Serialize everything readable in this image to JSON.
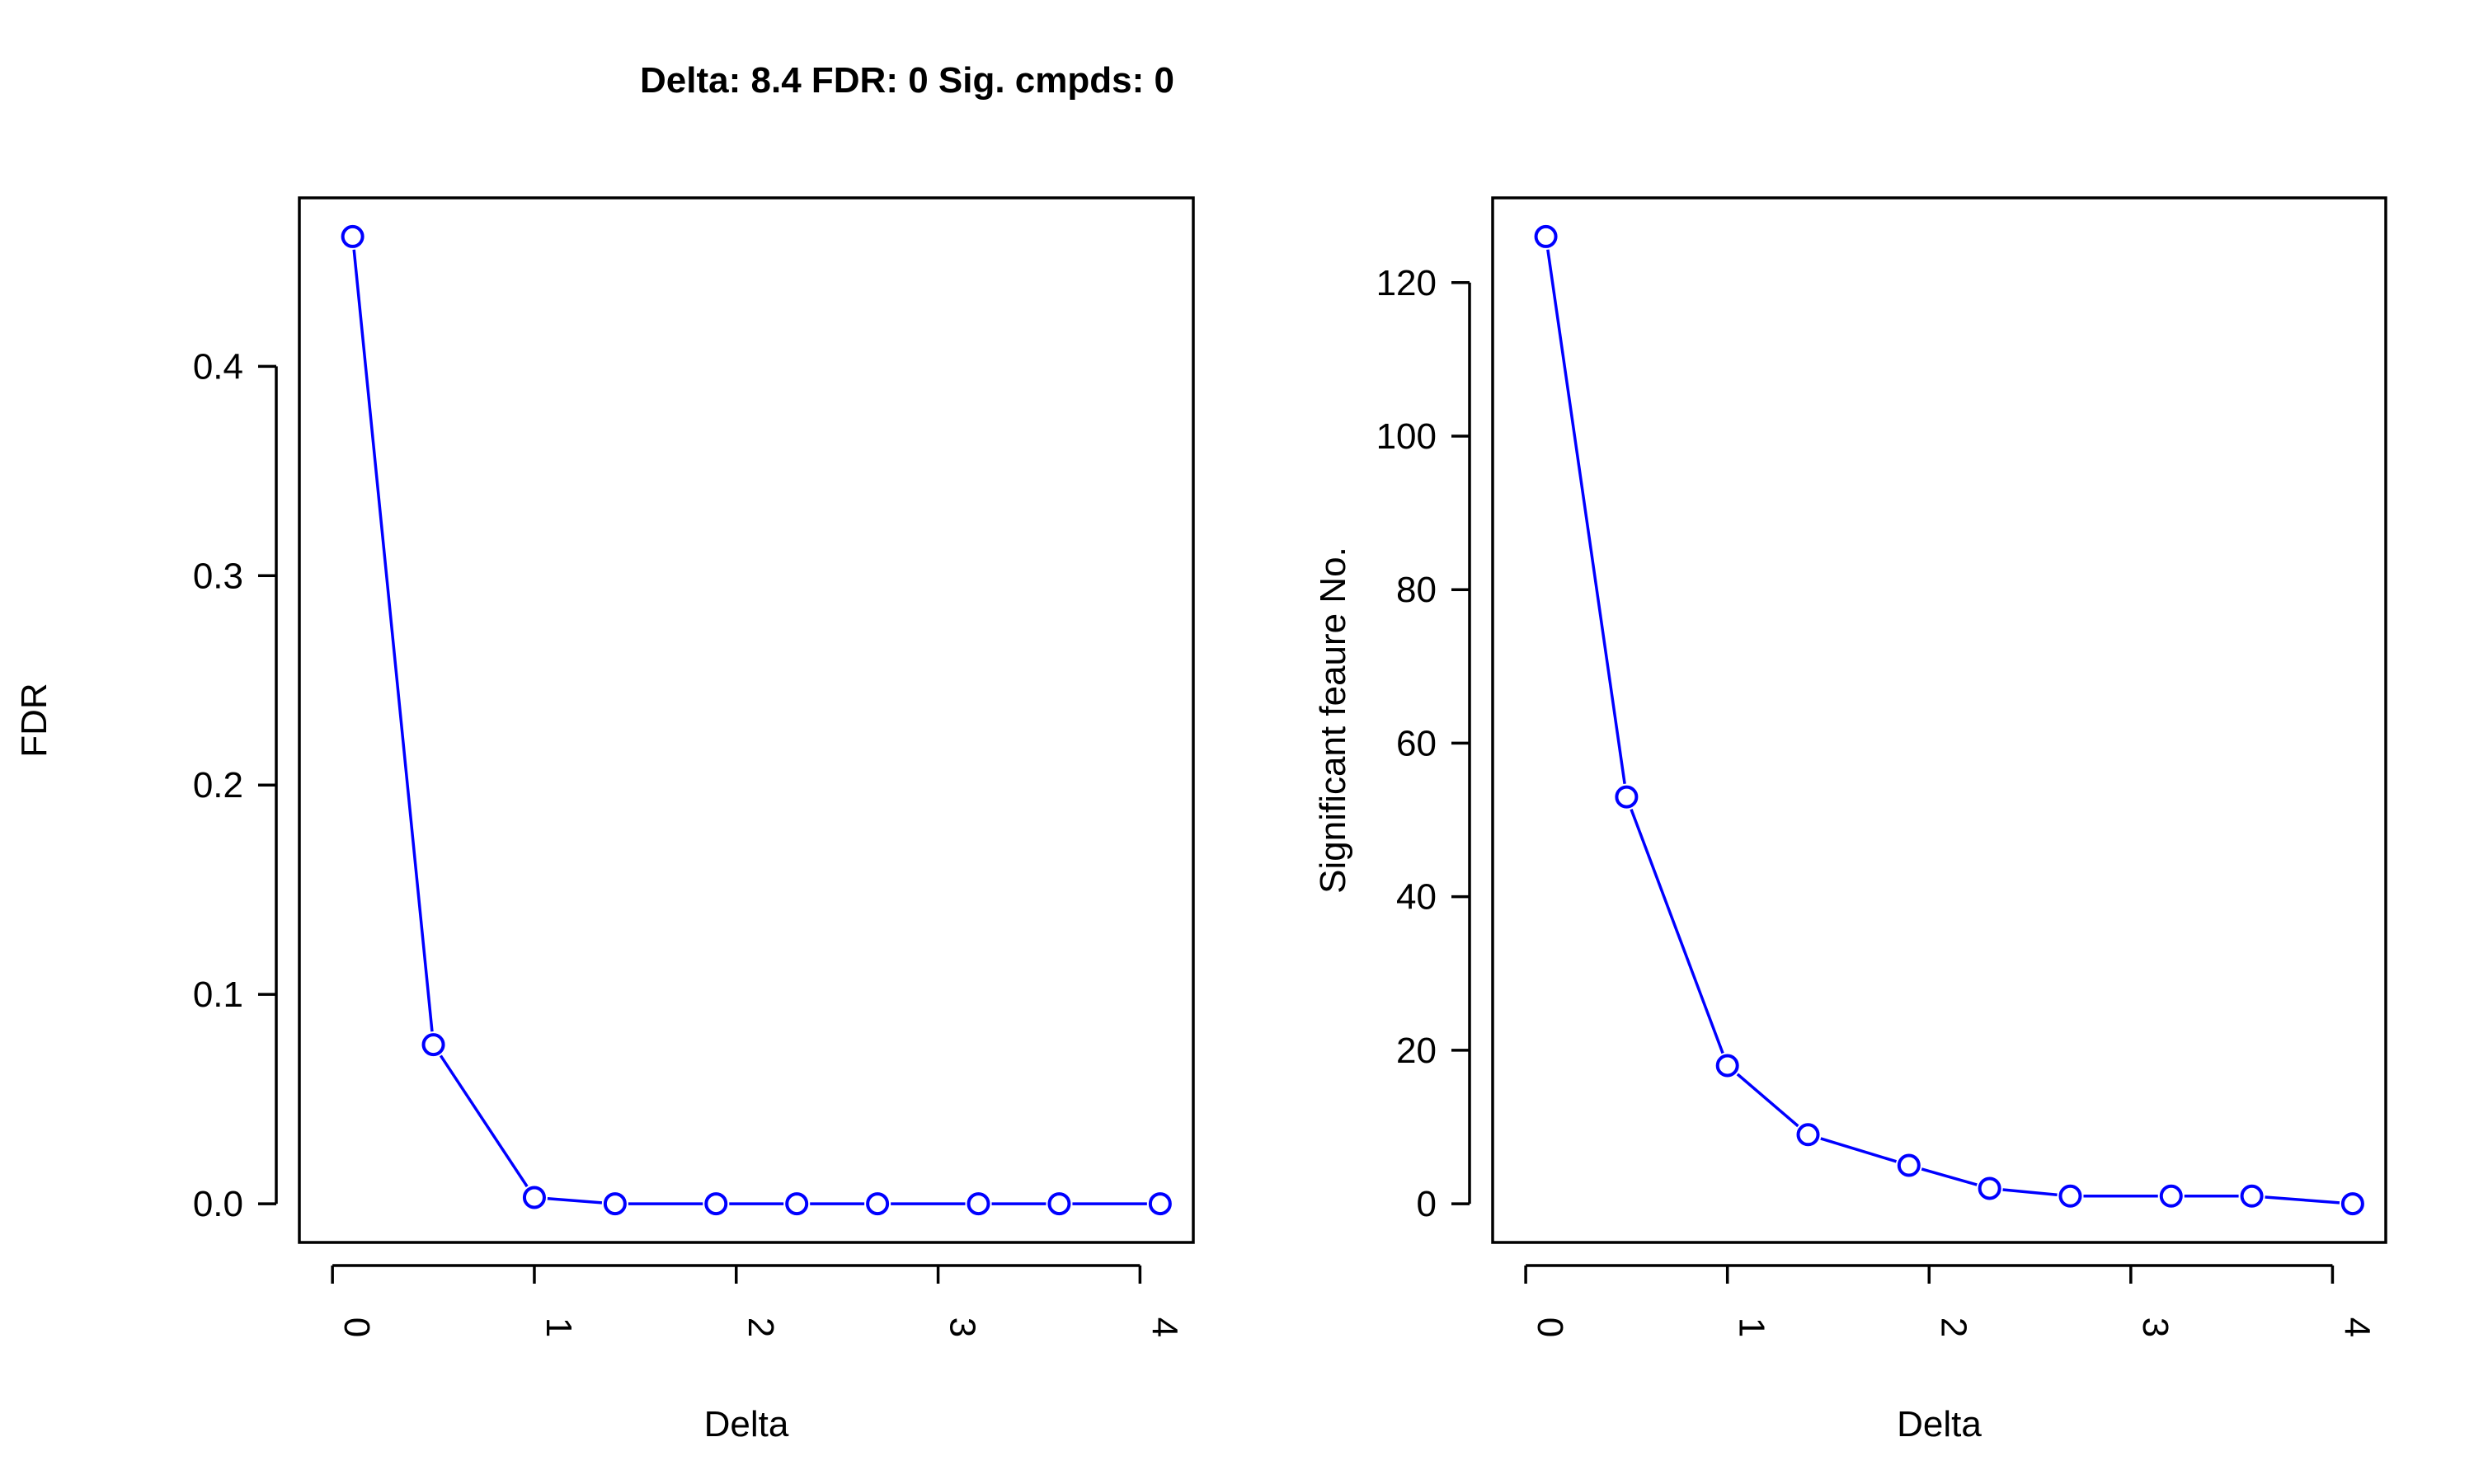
{
  "title": "Delta: 8.4  FDR: 0  Sig. cmpds: 0",
  "colors": {
    "series": "#0000ff",
    "axes": "#000000",
    "background": "#ffffff"
  },
  "chart_data": [
    {
      "type": "line",
      "xlabel": "Delta",
      "ylabel": "FDR",
      "xlim": [
        0,
        4.1
      ],
      "ylim": [
        0,
        0.462
      ],
      "xticks": [
        0,
        1,
        2,
        3,
        4
      ],
      "xtick_labels": [
        "0",
        "1",
        "2",
        "3",
        "4"
      ],
      "yticks": [
        0,
        0.1,
        0.2,
        0.3,
        0.4
      ],
      "ytick_labels": [
        "0.0",
        "0.1",
        "0.2",
        "0.3",
        "0.4"
      ],
      "grid": false,
      "x": [
        0.1,
        0.5,
        1.0,
        1.4,
        1.9,
        2.3,
        2.7,
        3.2,
        3.6,
        4.1
      ],
      "series": [
        {
          "values": [
            0.462,
            0.076,
            0.003,
            0.0,
            0.0,
            0.0,
            0.0,
            0.0,
            0.0,
            0.0
          ]
        }
      ]
    },
    {
      "type": "line",
      "xlabel": "Delta",
      "ylabel": "Significant feaure No.",
      "xlim": [
        0,
        4.1
      ],
      "ylim": [
        0,
        126
      ],
      "xticks": [
        0,
        1,
        2,
        3,
        4
      ],
      "xtick_labels": [
        "0",
        "1",
        "2",
        "3",
        "4"
      ],
      "yticks": [
        0,
        20,
        40,
        60,
        80,
        100,
        120
      ],
      "ytick_labels": [
        "0",
        "20",
        "40",
        "60",
        "80",
        "100",
        "120"
      ],
      "grid": false,
      "x": [
        0.1,
        0.5,
        1.0,
        1.4,
        1.9,
        2.3,
        2.7,
        3.2,
        3.6,
        4.1
      ],
      "series": [
        {
          "values": [
            126,
            53,
            18,
            9,
            5,
            2,
            1,
            1,
            1,
            0
          ]
        }
      ]
    }
  ]
}
